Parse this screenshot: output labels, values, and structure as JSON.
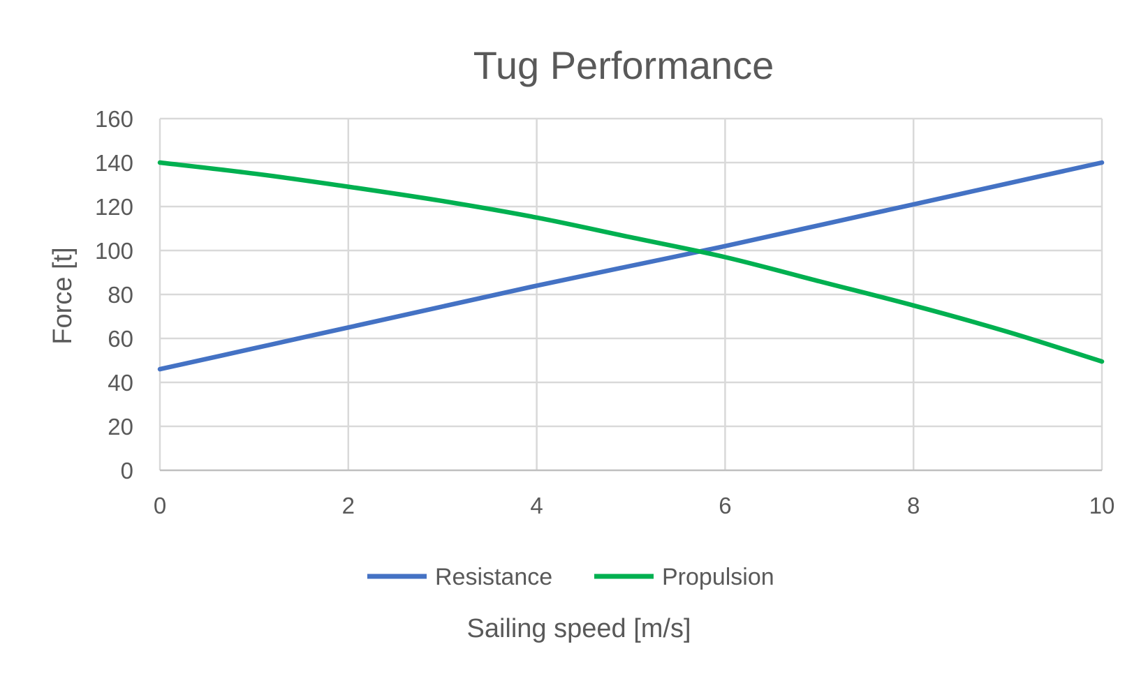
{
  "chart_data": {
    "type": "line",
    "title": "Tug Performance",
    "xlabel": "Sailing speed [m/s]",
    "ylabel": "Force [t]",
    "xlim": [
      0,
      10
    ],
    "ylim": [
      0,
      160
    ],
    "xticks": [
      0,
      2,
      4,
      6,
      8,
      10
    ],
    "yticks": [
      0,
      20,
      40,
      60,
      80,
      100,
      120,
      140,
      160
    ],
    "grid": true,
    "legend_position": "bottom",
    "series": [
      {
        "name": "Resistance",
        "color": "#4472C4",
        "x": [
          0,
          1,
          2,
          3,
          4,
          5,
          6,
          7,
          8,
          9,
          10
        ],
        "y": [
          46,
          55.5,
          65,
          74.5,
          84,
          93,
          102,
          111.5,
          121,
          130.5,
          140
        ]
      },
      {
        "name": "Propulsion",
        "color": "#00B050",
        "x": [
          0,
          1,
          2,
          3,
          4,
          5,
          6,
          7,
          8,
          9,
          10
        ],
        "y": [
          140,
          135,
          129,
          122.5,
          115,
          106,
          97,
          86,
          75,
          63,
          49.5
        ]
      }
    ]
  }
}
